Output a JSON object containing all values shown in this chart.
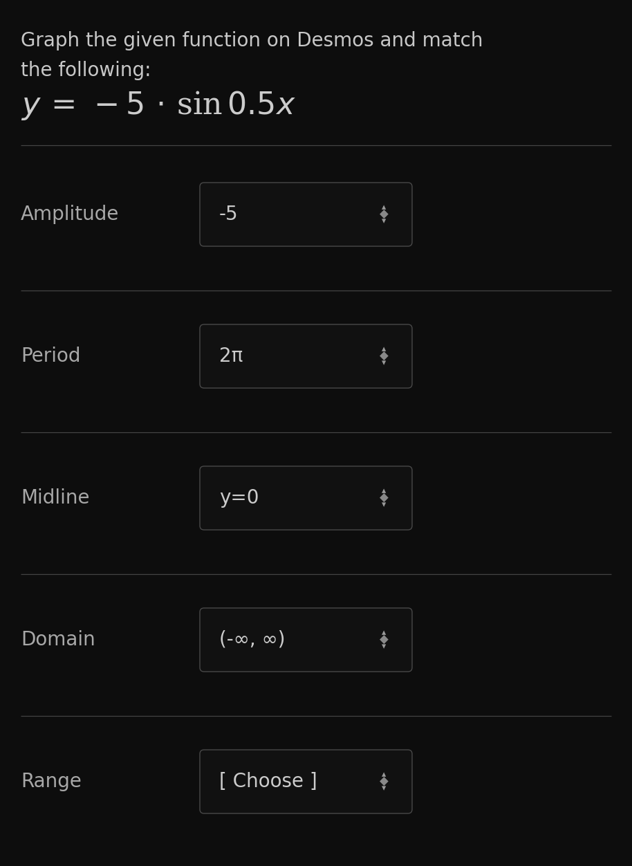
{
  "bg_color": "#0d0d0d",
  "title_line1": "Graph the given function on Desmos and match",
  "title_line2": "the following:",
  "rows": [
    {
      "label": "Amplitude",
      "value": "-5"
    },
    {
      "label": "Period",
      "value": "2π"
    },
    {
      "label": "Midline",
      "value": "y=0"
    },
    {
      "label": "Domain",
      "value": "(-∞, ∞)"
    },
    {
      "label": "Range",
      "value": "[ Choose ]"
    }
  ],
  "title_color": "#c8c8c8",
  "label_color": "#a8a8a8",
  "value_color": "#cccccc",
  "divider_color": "#444444",
  "box_bg": "#111111",
  "box_border": "#484848",
  "title_fontsize": 20,
  "formula_fontsize": 32,
  "label_fontsize": 20,
  "value_fontsize": 20,
  "arrow_fontsize": 14,
  "figwidth": 9.14,
  "figheight": 12.52,
  "dpi": 100
}
